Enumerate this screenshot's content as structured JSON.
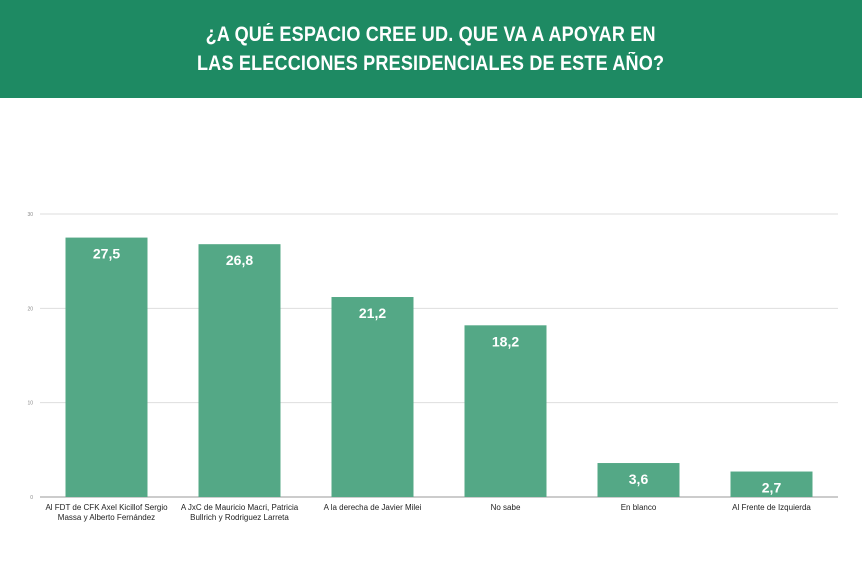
{
  "header": {
    "title_line1": "¿A QUÉ ESPACIO CREE UD. QUE VA A APOYAR EN",
    "title_line2": "LAS ELECCIONES PRESIDENCIALES DE ESTE AÑO?"
  },
  "colors": {
    "header_bg": "#1e8a63",
    "bar": "#54a886"
  },
  "chart_data": {
    "type": "bar",
    "title": "¿A QUÉ ESPACIO CREE UD. QUE VA A APOYAR EN LAS ELECCIONES PRESIDENCIALES DE ESTE AÑO?",
    "categories": [
      [
        "Al FDT de CFK Axel Kicillof Sergio",
        "Massa y Alberto Fernández"
      ],
      [
        "A JxC de Mauricio Macri, Patricia",
        "Bullrich y Rodriguez Larreta"
      ],
      [
        "A la derecha de Javier Milei"
      ],
      [
        "No sabe"
      ],
      [
        "En blanco"
      ],
      [
        "Al Frente de Izquierda"
      ]
    ],
    "values": [
      27.5,
      26.8,
      21.2,
      18.2,
      3.6,
      2.7
    ],
    "value_labels": [
      "27,5",
      "26,8",
      "21,2",
      "18,2",
      "3,6",
      "2,7"
    ],
    "ylim": [
      0,
      30
    ],
    "yticks": [
      0,
      10,
      20,
      30
    ],
    "grid": true,
    "legend": "none",
    "xlabel": "",
    "ylabel": ""
  }
}
